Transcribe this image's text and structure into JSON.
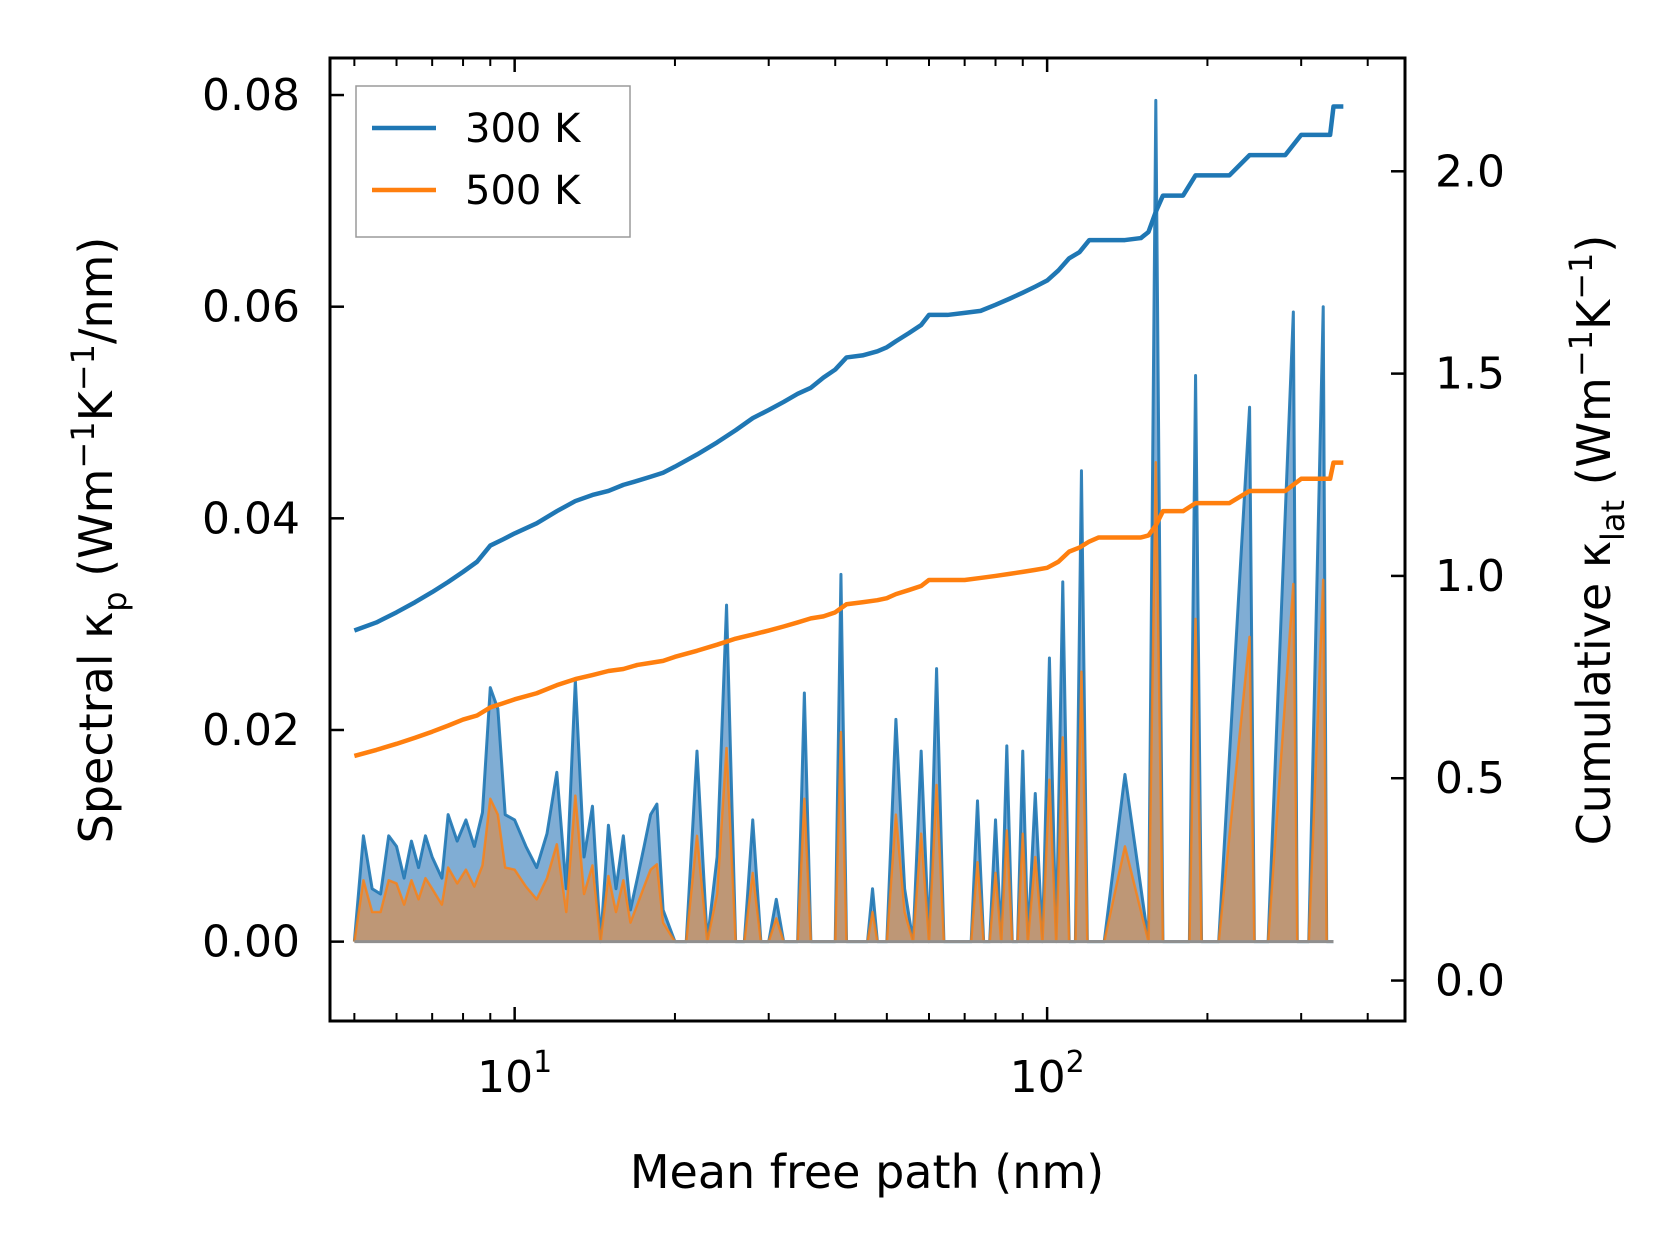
{
  "chart_data": {
    "type": "line",
    "xlabel": "Mean free path (nm)",
    "x_scale": "log",
    "xlim": [
      4.5,
      470
    ],
    "x_ticks": [
      {
        "value": 10,
        "base": "10",
        "exp": "1"
      },
      {
        "value": 100,
        "base": "10",
        "exp": "2"
      }
    ],
    "left_axis": {
      "label_parts": {
        "pre": "Spectral κ",
        "sub": "p",
        "mid": " (Wm",
        "sup1": "−1",
        "mid2": "K",
        "sup2": "−1",
        "post": "/nm)"
      },
      "ylim": [
        -0.0075,
        0.0835
      ],
      "ticks": [
        0.0,
        0.02,
        0.04,
        0.06,
        0.08
      ],
      "tick_labels": [
        "0.00",
        "0.02",
        "0.04",
        "0.06",
        "0.08"
      ]
    },
    "right_axis": {
      "label_parts": {
        "pre": "Cumulative κ",
        "sub": "lat",
        "mid": " (Wm",
        "sup1": "−1",
        "mid2": "K",
        "sup2": "−1",
        "post": ")"
      },
      "ylim": [
        -0.1,
        2.28
      ],
      "ticks": [
        0.0,
        0.5,
        1.0,
        1.5,
        2.0
      ],
      "tick_labels": [
        "0.0",
        "0.5",
        "1.0",
        "1.5",
        "2.0"
      ]
    },
    "legend": {
      "location": "top-left",
      "entries": [
        "300 K",
        "500 K"
      ]
    },
    "colors": {
      "s300": "#1f77b4",
      "s500": "#ff7f0e",
      "fill300": "#6a9fcc",
      "fill500": "#c4956b"
    },
    "spectral_300K": {
      "x": [
        5.0,
        5.2,
        5.4,
        5.6,
        5.8,
        6.0,
        6.2,
        6.4,
        6.6,
        6.8,
        7.0,
        7.3,
        7.5,
        7.8,
        8.1,
        8.4,
        8.7,
        9.0,
        9.3,
        9.6,
        10.0,
        10.5,
        11.0,
        11.5,
        12.0,
        12.5,
        13.0,
        13.5,
        14.0,
        14.5,
        15.0,
        15.5,
        16.0,
        16.5,
        17.0,
        17.5,
        18.0,
        18.5,
        19.0,
        20.0,
        21.0,
        22.0,
        23.0,
        24.0,
        25.0,
        26.0,
        27.0,
        28.0,
        29.0,
        30.0,
        31.0,
        32.0,
        33.0,
        34.0,
        35.0,
        36.0,
        37.0,
        38.0,
        39.0,
        40.0,
        41.0,
        42.0,
        43.0,
        44.0,
        45.0,
        46.0,
        47.0,
        48.0,
        50.0,
        52.0,
        54.0,
        56.0,
        58.0,
        60.0,
        62.0,
        64.0,
        66.0,
        68.0,
        70.0,
        72.0,
        74.0,
        76.0,
        78.0,
        80.0,
        82.0,
        84.0,
        86.0,
        88.0,
        90.0,
        92.0,
        95.0,
        98.0,
        101.0,
        104.0,
        107.0,
        110.0,
        113.0,
        116.0,
        119.0,
        122.0,
        125.0,
        128.0,
        140.0,
        155.0,
        160.0,
        165.0,
        170.0,
        175.0,
        185.0,
        190.0,
        195.0,
        200.0,
        210.0,
        240.0,
        245.0,
        250.0,
        260.0,
        290.0,
        295.0,
        300.0,
        310.0,
        330.0,
        335.0,
        340.0,
        345.0
      ],
      "y": [
        0.0,
        0.01,
        0.005,
        0.0045,
        0.01,
        0.009,
        0.006,
        0.0095,
        0.007,
        0.01,
        0.008,
        0.006,
        0.012,
        0.0095,
        0.0115,
        0.009,
        0.0122,
        0.024,
        0.022,
        0.012,
        0.0115,
        0.009,
        0.007,
        0.0102,
        0.016,
        0.005,
        0.0247,
        0.008,
        0.0128,
        0.0,
        0.011,
        0.005,
        0.01,
        0.003,
        0.006,
        0.009,
        0.012,
        0.013,
        0.003,
        0.0,
        0.0,
        0.018,
        0.0,
        0.008,
        0.0318,
        0.0,
        0.0,
        0.0115,
        0.0,
        0.0,
        0.004,
        0.0,
        0.0,
        0.0,
        0.0235,
        0.0,
        0.0,
        0.0,
        0.0,
        0.0,
        0.0347,
        0.0,
        0.0,
        0.0,
        0.0,
        0.0,
        0.005,
        0.0,
        0.0,
        0.021,
        0.005,
        0.0,
        0.018,
        0.0,
        0.0258,
        0.0,
        0.0,
        0.0,
        0.0,
        0.0,
        0.0133,
        0.0,
        0.0,
        0.0115,
        0.0,
        0.0185,
        0.0,
        0.0,
        0.018,
        0.0,
        0.014,
        0.0,
        0.0268,
        0.0,
        0.034,
        0.0,
        0.0,
        0.0445,
        0.0,
        0.0,
        0.0,
        0.0,
        0.0158,
        0.0,
        0.0795,
        0.0,
        0.0,
        0.0,
        0.0,
        0.0535,
        0.0,
        0.0,
        0.0,
        0.0505,
        0.0,
        0.0,
        0.0,
        0.0595,
        0.0,
        0.0,
        0.0,
        0.06,
        0.0,
        0.0,
        0.0
      ]
    },
    "spectral_500K": {
      "x": [
        5.0,
        5.2,
        5.4,
        5.6,
        5.8,
        6.0,
        6.2,
        6.4,
        6.6,
        6.8,
        7.0,
        7.3,
        7.5,
        7.8,
        8.1,
        8.4,
        8.7,
        9.0,
        9.3,
        9.6,
        10.0,
        10.5,
        11.0,
        11.5,
        12.0,
        12.5,
        13.0,
        13.5,
        14.0,
        14.5,
        15.0,
        15.5,
        16.0,
        16.5,
        17.0,
        17.5,
        18.0,
        18.5,
        19.0,
        20.0,
        21.0,
        22.0,
        23.0,
        24.0,
        25.0,
        26.0,
        27.0,
        28.0,
        29.0,
        30.0,
        31.0,
        32.0,
        33.0,
        34.0,
        35.0,
        36.0,
        37.0,
        38.0,
        39.0,
        40.0,
        41.0,
        42.0,
        43.0,
        44.0,
        45.0,
        46.0,
        47.0,
        48.0,
        50.0,
        52.0,
        54.0,
        56.0,
        58.0,
        60.0,
        62.0,
        64.0,
        66.0,
        68.0,
        70.0,
        72.0,
        74.0,
        76.0,
        78.0,
        80.0,
        82.0,
        84.0,
        86.0,
        88.0,
        90.0,
        92.0,
        95.0,
        98.0,
        101.0,
        104.0,
        107.0,
        110.0,
        113.0,
        116.0,
        119.0,
        122.0,
        125.0,
        128.0,
        140.0,
        155.0,
        160.0,
        165.0,
        170.0,
        175.0,
        185.0,
        190.0,
        195.0,
        200.0,
        210.0,
        240.0,
        245.0,
        250.0,
        260.0,
        290.0,
        295.0,
        300.0,
        310.0,
        330.0,
        335.0,
        340.0,
        345.0
      ],
      "y": [
        0.0,
        0.0058,
        0.0028,
        0.0028,
        0.0058,
        0.0055,
        0.0035,
        0.0058,
        0.004,
        0.006,
        0.005,
        0.0035,
        0.007,
        0.0055,
        0.0068,
        0.0052,
        0.0072,
        0.0135,
        0.012,
        0.007,
        0.0068,
        0.0052,
        0.004,
        0.006,
        0.0092,
        0.0028,
        0.0138,
        0.0045,
        0.0072,
        0.0,
        0.0062,
        0.0028,
        0.0058,
        0.0018,
        0.0035,
        0.0052,
        0.0068,
        0.0073,
        0.0018,
        0.0,
        0.0,
        0.01,
        0.0,
        0.0045,
        0.0183,
        0.0,
        0.0,
        0.0065,
        0.0,
        0.0,
        0.0022,
        0.0,
        0.0,
        0.0,
        0.0135,
        0.0,
        0.0,
        0.0,
        0.0,
        0.0,
        0.0198,
        0.0,
        0.0,
        0.0,
        0.0,
        0.0,
        0.0028,
        0.0,
        0.0,
        0.012,
        0.0028,
        0.0,
        0.0102,
        0.0,
        0.0148,
        0.0,
        0.0,
        0.0,
        0.0,
        0.0,
        0.0075,
        0.0,
        0.0,
        0.0065,
        0.0,
        0.0105,
        0.0,
        0.0,
        0.0102,
        0.0,
        0.008,
        0.0,
        0.0153,
        0.0,
        0.0193,
        0.0,
        0.0,
        0.0255,
        0.0,
        0.0,
        0.0,
        0.0,
        0.009,
        0.0,
        0.0453,
        0.0,
        0.0,
        0.0,
        0.0,
        0.0305,
        0.0,
        0.0,
        0.0,
        0.0288,
        0.0,
        0.0,
        0.0,
        0.0338,
        0.0,
        0.0,
        0.0,
        0.0342,
        0.0,
        0.0,
        0.0
      ]
    },
    "cumulative_300K": {
      "x": [
        5.0,
        5.5,
        6.0,
        6.5,
        7.0,
        7.5,
        8.0,
        8.5,
        9.0,
        9.5,
        10.0,
        11.0,
        12.0,
        13.0,
        14.0,
        15.0,
        16.0,
        17.0,
        18.0,
        19.0,
        20.0,
        22.0,
        24.0,
        26.0,
        28.0,
        30.0,
        32.0,
        34.0,
        36.0,
        38.0,
        40.0,
        42.0,
        45.0,
        48.0,
        50.0,
        52.0,
        55.0,
        58.0,
        60.0,
        65.0,
        70.0,
        75.0,
        80.0,
        85.0,
        90.0,
        95.0,
        100.0,
        105.0,
        110.0,
        115.0,
        120.0,
        125.0,
        130.0,
        140.0,
        150.0,
        155.0,
        160.0,
        165.0,
        170.0,
        180.0,
        190.0,
        200.0,
        220.0,
        240.0,
        250.0,
        280.0,
        300.0,
        310.0,
        340.0,
        345.0,
        350.0,
        360.0
      ],
      "y": [
        0.865,
        0.885,
        0.91,
        0.935,
        0.96,
        0.985,
        1.01,
        1.035,
        1.075,
        1.09,
        1.105,
        1.13,
        1.16,
        1.185,
        1.2,
        1.21,
        1.225,
        1.235,
        1.245,
        1.255,
        1.27,
        1.3,
        1.33,
        1.36,
        1.39,
        1.41,
        1.43,
        1.45,
        1.465,
        1.49,
        1.51,
        1.54,
        1.545,
        1.555,
        1.565,
        1.58,
        1.6,
        1.62,
        1.645,
        1.645,
        1.65,
        1.655,
        1.67,
        1.685,
        1.7,
        1.715,
        1.73,
        1.755,
        1.785,
        1.8,
        1.83,
        1.83,
        1.83,
        1.83,
        1.835,
        1.85,
        1.9,
        1.94,
        1.94,
        1.94,
        1.99,
        1.99,
        1.99,
        2.04,
        2.04,
        2.04,
        2.09,
        2.09,
        2.09,
        2.16,
        2.16,
        2.16
      ]
    },
    "cumulative_500K": {
      "x": [
        5.0,
        5.5,
        6.0,
        6.5,
        7.0,
        7.5,
        8.0,
        8.5,
        9.0,
        9.5,
        10.0,
        11.0,
        12.0,
        13.0,
        14.0,
        15.0,
        16.0,
        17.0,
        18.0,
        19.0,
        20.0,
        22.0,
        24.0,
        26.0,
        28.0,
        30.0,
        32.0,
        34.0,
        36.0,
        38.0,
        40.0,
        42.0,
        45.0,
        48.0,
        50.0,
        52.0,
        55.0,
        58.0,
        60.0,
        65.0,
        70.0,
        75.0,
        80.0,
        85.0,
        90.0,
        95.0,
        100.0,
        105.0,
        110.0,
        115.0,
        120.0,
        125.0,
        130.0,
        140.0,
        150.0,
        155.0,
        160.0,
        165.0,
        170.0,
        180.0,
        190.0,
        200.0,
        220.0,
        240.0,
        250.0,
        280.0,
        300.0,
        310.0,
        340.0,
        345.0,
        350.0,
        360.0
      ],
      "y": [
        0.555,
        0.57,
        0.585,
        0.6,
        0.615,
        0.63,
        0.645,
        0.655,
        0.675,
        0.685,
        0.695,
        0.71,
        0.73,
        0.745,
        0.755,
        0.765,
        0.77,
        0.78,
        0.785,
        0.79,
        0.8,
        0.815,
        0.83,
        0.845,
        0.855,
        0.865,
        0.875,
        0.885,
        0.895,
        0.9,
        0.91,
        0.93,
        0.935,
        0.94,
        0.945,
        0.955,
        0.965,
        0.975,
        0.99,
        0.99,
        0.99,
        0.995,
        1.0,
        1.005,
        1.01,
        1.015,
        1.02,
        1.035,
        1.06,
        1.07,
        1.085,
        1.095,
        1.095,
        1.095,
        1.095,
        1.1,
        1.125,
        1.16,
        1.16,
        1.16,
        1.18,
        1.18,
        1.18,
        1.21,
        1.21,
        1.21,
        1.24,
        1.24,
        1.24,
        1.28,
        1.28,
        1.28
      ]
    }
  }
}
